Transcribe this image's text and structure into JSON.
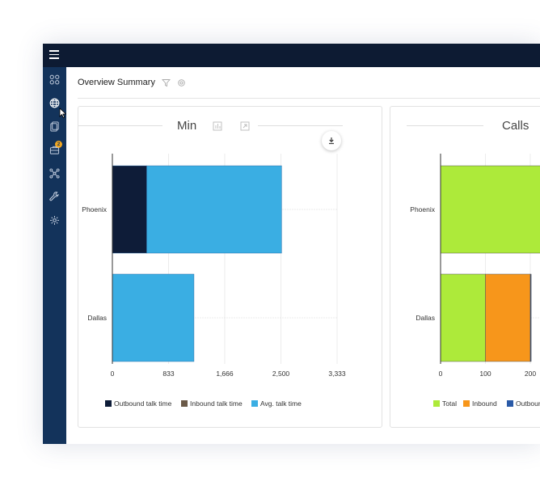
{
  "page": {
    "title": "Overview Summary"
  },
  "sidebar": {
    "badge_count": "2",
    "icons": [
      "apps-icon",
      "globe-icon",
      "reports-icon",
      "briefcase-icon",
      "network-icon",
      "wrench-icon",
      "gear-icon"
    ]
  },
  "colors": {
    "outbound": "#0e1c38",
    "inbound": "#6b5a48",
    "avg": "#3aaee3",
    "total": "#adea3a",
    "inbound_calls": "#f7961b",
    "outbound_calls": "#2a5aa7"
  },
  "chart_data": [
    {
      "type": "bar",
      "orientation": "horizontal",
      "stacked": true,
      "title": "Min",
      "categories": [
        "Phoenix",
        "Dallas"
      ],
      "series": [
        {
          "name": "Outbound talk time",
          "values": [
            510,
            0
          ]
        },
        {
          "name": "Inbound talk time",
          "values": [
            0,
            0
          ]
        },
        {
          "name": "Avg. talk time",
          "values": [
            2000,
            1210
          ]
        }
      ],
      "xlim": [
        0,
        3333
      ],
      "xticks": [
        "0",
        "833",
        "1,666",
        "2,500",
        "3,333"
      ],
      "xtick_values": [
        0,
        833,
        1666,
        2500,
        3333
      ],
      "legend": "bottom"
    },
    {
      "type": "bar",
      "orientation": "horizontal",
      "stacked": true,
      "title": "Calls",
      "categories": [
        "Phoenix",
        "Dallas"
      ],
      "series": [
        {
          "name": "Total",
          "values": [
            260,
            100
          ]
        },
        {
          "name": "Inbound",
          "values": [
            0,
            100
          ]
        },
        {
          "name": "Outboun",
          "values": [
            0,
            2
          ]
        }
      ],
      "xticks": [
        "0",
        "100",
        "200"
      ],
      "xtick_values": [
        0,
        100,
        200
      ],
      "legend": "bottom"
    }
  ]
}
